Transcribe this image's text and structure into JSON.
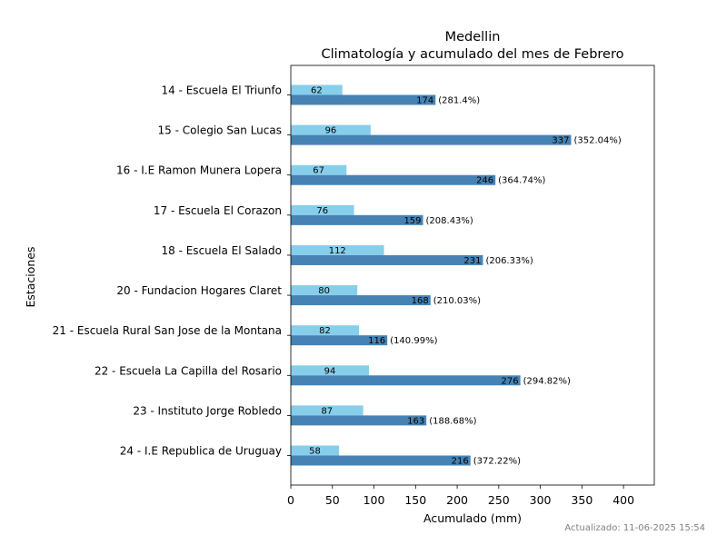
{
  "chart_data": {
    "type": "bar",
    "orientation": "horizontal",
    "title": "Medellin",
    "subtitle": "Climatología y acumulado del mes de Febrero",
    "xlabel": "Acumulado (mm)",
    "ylabel": "Estaciones",
    "xlim": [
      0,
      437
    ],
    "xticks": [
      0,
      50,
      100,
      150,
      200,
      250,
      300,
      350,
      400
    ],
    "grid": false,
    "categories": [
      "14 - Escuela El Triunfo",
      "15 - Colegio San Lucas",
      "16 - I.E Ramon Munera Lopera",
      "17 - Escuela El Corazon",
      "18 - Escuela El Salado",
      "20 - Fundacion Hogares Claret",
      "21 - Escuela Rural San Jose de la Montana",
      "22 - Escuela La Capilla del Rosario",
      "23 - Instituto Jorge Robledo",
      "24 - I.E Republica de Uruguay"
    ],
    "series": [
      {
        "color": "#87ceeb",
        "values": [
          62,
          96,
          67,
          76,
          112,
          80,
          82,
          94,
          87,
          58
        ]
      },
      {
        "color": "#4682b4",
        "values": [
          174,
          337,
          246,
          159,
          231,
          168,
          116,
          276,
          163,
          216
        ]
      }
    ],
    "percent_labels": [
      "(281.4%)",
      "(352.04%)",
      "(364.74%)",
      "(208.43%)",
      "(206.33%)",
      "(210.03%)",
      "(140.99%)",
      "(294.82%)",
      "(188.68%)",
      "(372.22%)"
    ]
  },
  "footer": {
    "updated": "Actualizado: 11-06-2025 15:54"
  }
}
